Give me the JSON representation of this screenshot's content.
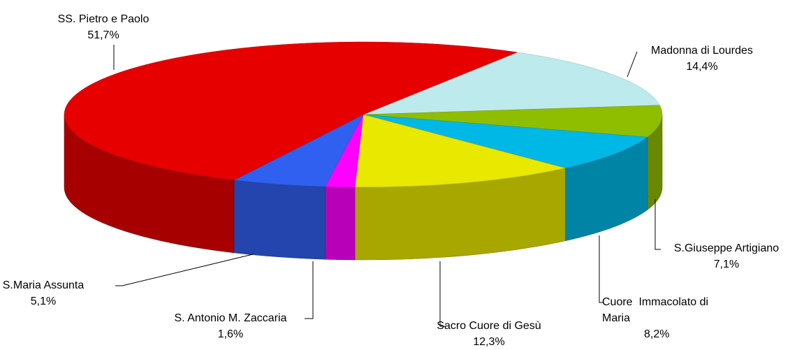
{
  "chart_data": {
    "type": "pie3d",
    "categories": [
      "Madonna di Lourdes",
      "S.Giuseppe Artigiano",
      "Cuore  Immacolato di Maria",
      "Sacro Cuore di Gesù",
      "S. Antonio M. Zaccaria",
      "S.Maria Assunta",
      "SS. Pietro e Paolo"
    ],
    "values": [
      14.4,
      7.1,
      8.2,
      12.3,
      1.6,
      5.1,
      51.7
    ],
    "value_labels": [
      "14,4%",
      "7,1%",
      "8,2%",
      "12,3%",
      "1,6%",
      "5,1%",
      "51,7%"
    ],
    "colors": [
      "#bdeaec",
      "#8fbd00",
      "#00b8e6",
      "#e8e800",
      "#ff00ff",
      "#3060f0",
      "#e60000"
    ]
  }
}
